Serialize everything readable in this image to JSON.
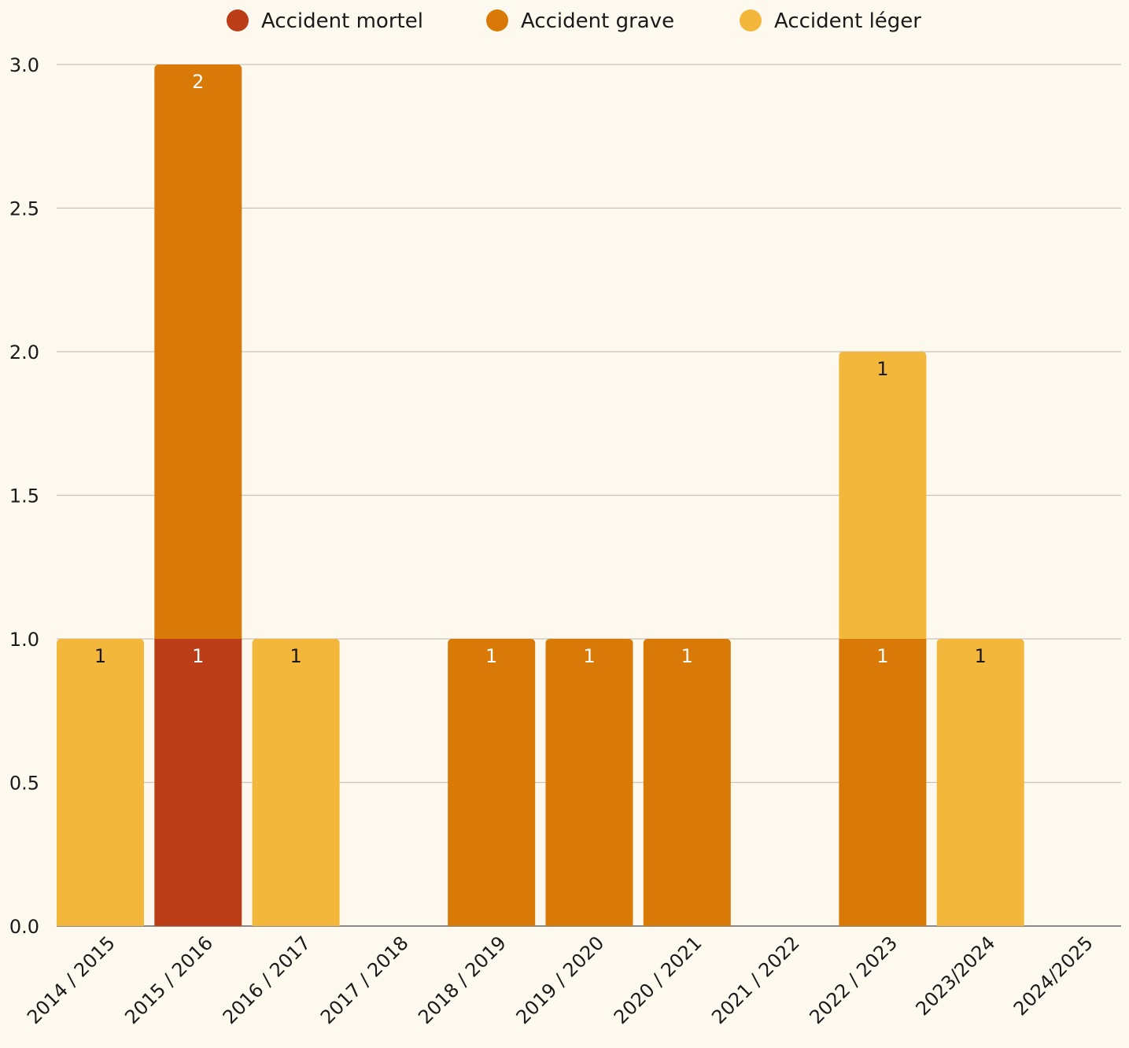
{
  "chart_data": {
    "type": "bar",
    "stacked": true,
    "categories": [
      "2014 / 2015",
      "2015 / 2016",
      "2016 / 2017",
      "2017 / 2018",
      "2018 / 2019",
      "2019 / 2020",
      "2020 / 2021",
      "2021 / 2022",
      "2022 / 2023",
      "2023/2024",
      "2024/2025"
    ],
    "series": [
      {
        "name": "Accident mortel",
        "color": "#bc3e18",
        "label_color": "#ffffff",
        "values": [
          0,
          1,
          0,
          0,
          0,
          0,
          0,
          0,
          0,
          0,
          0
        ]
      },
      {
        "name": "Accident grave",
        "color": "#d97a08",
        "label_color": "#ffffff",
        "values": [
          0,
          2,
          0,
          0,
          1,
          1,
          1,
          0,
          1,
          0,
          0
        ]
      },
      {
        "name": "Accident léger",
        "color": "#f3b73c",
        "label_color": "#1a1a1a",
        "values": [
          1,
          0,
          1,
          0,
          0,
          0,
          0,
          0,
          1,
          1,
          0
        ]
      }
    ],
    "ylim": [
      0,
      3.0
    ],
    "yticks": [
      "0.0",
      "0.5",
      "1.0",
      "1.5",
      "2.0",
      "2.5",
      "3.0"
    ],
    "grid": true,
    "legend_position": "top"
  }
}
